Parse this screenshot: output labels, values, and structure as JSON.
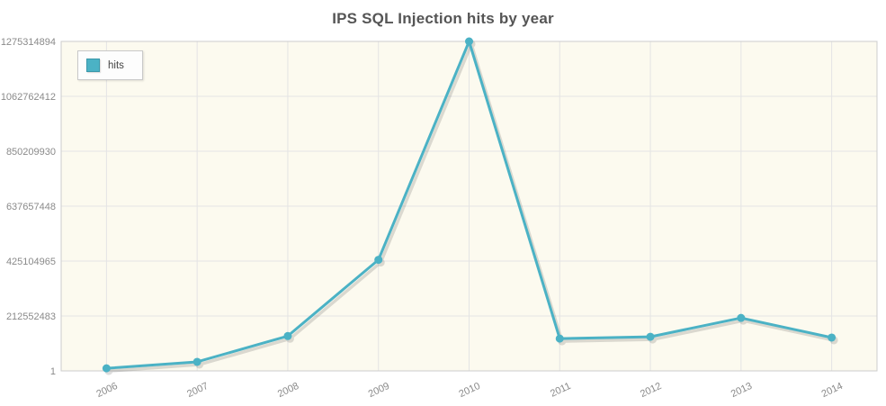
{
  "chart_data": {
    "type": "line",
    "title": "IPS SQL Injection hits by year",
    "categories": [
      "2006",
      "2007",
      "2008",
      "2009",
      "2010",
      "2011",
      "2012",
      "2013",
      "2014"
    ],
    "series": [
      {
        "name": "hits",
        "color": "#4bb2c5",
        "values": [
          10000000,
          35000000,
          135000000,
          430000000,
          1275314894,
          125000000,
          132000000,
          205000000,
          129000000
        ]
      }
    ],
    "ylim": [
      1,
      1275314894
    ],
    "yticks": [
      1,
      212552483,
      425104965,
      637657448,
      850209930,
      1062762412,
      1275314894
    ],
    "xlabel": "",
    "ylabel": "",
    "grid": true,
    "legend_position": "top-left",
    "plot_background": "#fcfaef",
    "grid_color": "#e4e4e4",
    "border_color": "#cccccc",
    "title_color": "#555555",
    "tick_color": "#888888"
  }
}
